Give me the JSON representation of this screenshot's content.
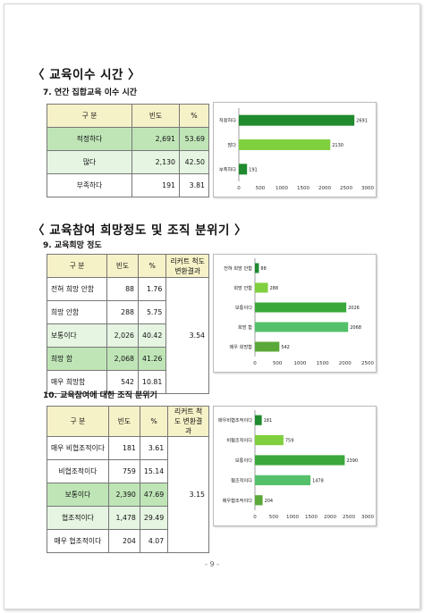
{
  "section1": {
    "heading": "〈 교육이수 시간 〉",
    "subheading": "7. 연간 집합교육 이수 시간",
    "table": {
      "headers": [
        "구  분",
        "빈도",
        "%"
      ],
      "rows": [
        {
          "label": "적정하다",
          "freq": "2,691",
          "pct": "53.69"
        },
        {
          "label": "많다",
          "freq": "2,130",
          "pct": "42.50"
        },
        {
          "label": "부족하다",
          "freq": "191",
          "pct": "3.81"
        }
      ]
    },
    "chart_data": {
      "type": "bar",
      "orientation": "horizontal",
      "categories": [
        "적정하다",
        "많다",
        "부족하다"
      ],
      "values": [
        2691,
        2130,
        191
      ],
      "data_labels": [
        "2691",
        "2130",
        "191"
      ],
      "ticks": [
        "0",
        "500",
        "1000",
        "1500",
        "2000",
        "2500",
        "3000"
      ],
      "xlim": [
        0,
        3000
      ],
      "colors": [
        "#1f8a2e",
        "#7fcf3f",
        "#1f8a2e"
      ]
    }
  },
  "section2": {
    "heading": "〈 교육참여 희망정도 및 조직 분위기 〉",
    "subheading": "9. 교육희망 정도",
    "table": {
      "headers": [
        "구  분",
        "빈도",
        "%",
        "리커트 척도 변환결과"
      ],
      "merged_value": "3.54",
      "rows": [
        {
          "label": "전혀 희망 안함",
          "freq": "88",
          "pct": "1.76"
        },
        {
          "label": "희망 안함",
          "freq": "288",
          "pct": "5.75"
        },
        {
          "label": "보통이다",
          "freq": "2,026",
          "pct": "40.42"
        },
        {
          "label": "희망 함",
          "freq": "2,068",
          "pct": "41.26"
        },
        {
          "label": "매우 희망함",
          "freq": "542",
          "pct": "10.81"
        }
      ]
    },
    "chart_data": {
      "type": "bar",
      "orientation": "horizontal",
      "categories": [
        "전혀 희망 안함",
        "희망 안함",
        "보통이다",
        "희망 함",
        "매우 희망함"
      ],
      "values": [
        88,
        288,
        2026,
        2068,
        542
      ],
      "data_labels": [
        "88",
        "288",
        "2026",
        "2068",
        "542"
      ],
      "ticks": [
        "0",
        "500",
        "1000",
        "1500",
        "2000",
        "2500"
      ],
      "xlim": [
        0,
        2500
      ],
      "colors": [
        "#1f8a2e",
        "#7fcf3f",
        "#3aa83a",
        "#55c06a",
        "#5aa83a"
      ]
    }
  },
  "section3": {
    "subheading": "10. 교육참여에 대한 조직 분위기",
    "table": {
      "headers": [
        "구  분",
        "빈도",
        "%",
        "리커트 척도 변환결과"
      ],
      "merged_value": "3.15",
      "rows": [
        {
          "label": "매우 비협조적이다",
          "freq": "181",
          "pct": "3.61"
        },
        {
          "label": "비협조적이다",
          "freq": "759",
          "pct": "15.14"
        },
        {
          "label": "보통이다",
          "freq": "2,390",
          "pct": "47.69"
        },
        {
          "label": "협조적이다",
          "freq": "1,478",
          "pct": "29.49"
        },
        {
          "label": "매우 협조적이다",
          "freq": "204",
          "pct": "4.07"
        }
      ]
    },
    "chart_data": {
      "type": "bar",
      "orientation": "horizontal",
      "categories": [
        "매우비협조적이다",
        "비협조적이다",
        "보통이다",
        "협조적이다",
        "매우협조적이다"
      ],
      "values": [
        181,
        759,
        2390,
        1478,
        204
      ],
      "data_labels": [
        "181",
        "759",
        "2390",
        "1478",
        "204"
      ],
      "ticks": [
        "0",
        "500",
        "1000",
        "1500",
        "2000",
        "2500",
        "3000"
      ],
      "xlim": [
        0,
        3000
      ],
      "colors": [
        "#1f8a2e",
        "#7fcf3f",
        "#3aa83a",
        "#55c06a",
        "#5aa83a"
      ]
    }
  },
  "page_number": "- 9 -"
}
